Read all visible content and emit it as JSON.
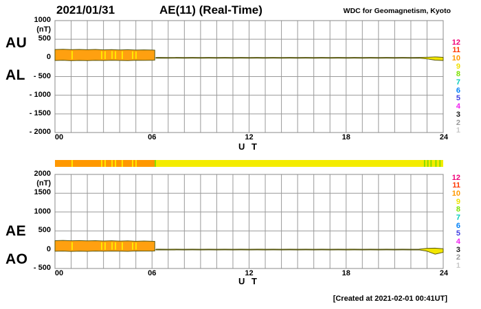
{
  "header": {
    "date": "2021/01/31",
    "title": "AE(11) (Real-Time)",
    "source": "WDC for Geomagnetism, Kyoto"
  },
  "footer": {
    "created": "[Created at 2021-02-01 00:41UT]"
  },
  "colors": {
    "grid": "#999999",
    "border": "#888888",
    "band_orange": "#FFA010",
    "band_yellow": "#F2E600",
    "band_stroke": "#56560e",
    "streak_yellow": "#FFE800",
    "bar_orange": "#FF9800",
    "bar_yellow": "#F4EC00",
    "bar_green": "#8ADC00"
  },
  "legend": {
    "items": [
      {
        "label": "12",
        "color": "#F00078"
      },
      {
        "label": "11",
        "color": "#FF3800"
      },
      {
        "label": "10",
        "color": "#FF9800"
      },
      {
        "label": "9",
        "color": "#F0E000"
      },
      {
        "label": "8",
        "color": "#7CE000"
      },
      {
        "label": "7",
        "color": "#00CCBB"
      },
      {
        "label": "6",
        "color": "#0080F8"
      },
      {
        "label": "5",
        "color": "#4040E0"
      },
      {
        "label": "4",
        "color": "#F020F0"
      },
      {
        "label": "3",
        "color": "#181818"
      },
      {
        "label": "2",
        "color": "#989898"
      },
      {
        "label": "1",
        "color": "#C8C8C8"
      }
    ]
  },
  "activity_bar": {
    "segments": [
      {
        "from": 0,
        "to": 6.17,
        "color_key": "bar_orange"
      },
      {
        "from": 6.17,
        "to": 24,
        "color_key": "bar_yellow"
      }
    ],
    "yellow_streak_hours": [
      1.06,
      2.89,
      3.1,
      3.53,
      3.74,
      4.16,
      4.8,
      5.01
    ],
    "green_streak_hours": [
      6.2,
      22.85,
      23.05,
      23.25,
      23.55,
      23.8
    ]
  },
  "chart_data": [
    {
      "type": "area",
      "panel": "top",
      "title": "AU / AL band",
      "left_labels": [
        "AU",
        "AL"
      ],
      "ylabel": "(nT)",
      "xlabel": "U T",
      "ylim": [
        -2000,
        1000
      ],
      "grid": true,
      "transition_hour": 6.17,
      "yticks": [
        {
          "v": 1000,
          "label": "1000"
        },
        {
          "v": 500,
          "label": "500"
        },
        {
          "v": 0,
          "label": "0"
        },
        {
          "v": -500,
          "label": "- 500"
        },
        {
          "v": -1000,
          "label": "- 1000"
        },
        {
          "v": -1500,
          "label": "- 1500"
        },
        {
          "v": -2000,
          "label": "- 2000"
        }
      ],
      "xticks": [
        {
          "h": 0,
          "label": "00"
        },
        {
          "h": 6,
          "label": "06"
        },
        {
          "h": 12,
          "label": "12"
        },
        {
          "h": 18,
          "label": "18"
        },
        {
          "h": 24,
          "label": "24"
        }
      ],
      "x_hours": [
        0,
        0.5,
        1,
        1.5,
        2,
        2.5,
        3,
        3.5,
        4,
        4.5,
        5,
        5.5,
        6,
        6.17,
        6.25,
        6.5,
        7,
        7.5,
        8,
        8.5,
        9,
        9.5,
        10,
        10.5,
        11,
        11.5,
        12,
        12.5,
        13,
        13.5,
        14,
        14.5,
        15,
        15.5,
        16,
        16.5,
        17,
        17.5,
        18,
        18.5,
        19,
        19.5,
        20,
        20.5,
        21,
        21.5,
        22,
        22.5,
        23,
        23.5,
        24
      ],
      "series": [
        {
          "name": "AU",
          "values": [
            225,
            232,
            222,
            228,
            220,
            226,
            216,
            222,
            214,
            220,
            210,
            216,
            210,
            208,
            12,
            12,
            10,
            12,
            10,
            12,
            10,
            12,
            10,
            12,
            10,
            12,
            10,
            12,
            10,
            12,
            10,
            12,
            10,
            12,
            10,
            12,
            10,
            12,
            10,
            12,
            10,
            12,
            10,
            12,
            10,
            12,
            10,
            12,
            18,
            28,
            15
          ]
        },
        {
          "name": "AL",
          "values": [
            -70,
            -64,
            -74,
            -68,
            -72,
            -66,
            -70,
            -64,
            -68,
            -72,
            -62,
            -66,
            -62,
            -60,
            -8,
            -6,
            -8,
            -6,
            -8,
            -6,
            -8,
            -6,
            -8,
            -6,
            -8,
            -6,
            -8,
            -6,
            -8,
            -6,
            -8,
            -6,
            -8,
            -6,
            -8,
            -6,
            -8,
            -6,
            -8,
            -6,
            -8,
            -6,
            -8,
            -6,
            -8,
            -6,
            -8,
            -6,
            -25,
            -60,
            -70
          ]
        }
      ],
      "streak_hours": [
        1.06,
        2.89,
        3.1,
        3.53,
        3.74,
        4.16,
        4.8,
        5.01
      ]
    },
    {
      "type": "area",
      "panel": "bottom",
      "title": "AE / AO band",
      "left_labels": [
        "AE",
        "AO"
      ],
      "ylabel": "(nT)",
      "xlabel": "U T",
      "ylim": [
        -500,
        2000
      ],
      "grid": true,
      "transition_hour": 6.17,
      "yticks": [
        {
          "v": 2000,
          "label": "2000"
        },
        {
          "v": 1500,
          "label": "1500"
        },
        {
          "v": 1000,
          "label": "1000"
        },
        {
          "v": 500,
          "label": "500"
        },
        {
          "v": 0,
          "label": "0"
        },
        {
          "v": -500,
          "label": "- 500"
        }
      ],
      "xticks": [
        {
          "h": 0,
          "label": "00"
        },
        {
          "h": 6,
          "label": "06"
        },
        {
          "h": 12,
          "label": "12"
        },
        {
          "h": 18,
          "label": "18"
        },
        {
          "h": 24,
          "label": "24"
        }
      ],
      "x_hours": [
        0,
        0.5,
        1,
        1.5,
        2,
        2.5,
        3,
        3.5,
        4,
        4.5,
        5,
        5.5,
        6,
        6.17,
        6.25,
        6.5,
        7,
        7.5,
        8,
        8.5,
        9,
        9.5,
        10,
        10.5,
        11,
        11.5,
        12,
        12.5,
        13,
        13.5,
        14,
        14.5,
        15,
        15.5,
        16,
        16.5,
        17,
        17.5,
        18,
        18.5,
        19,
        19.5,
        20,
        20.5,
        21,
        21.5,
        22,
        22.5,
        23,
        23.5,
        24
      ],
      "series": [
        {
          "name": "AE",
          "values": [
            240,
            246,
            236,
            242,
            234,
            240,
            230,
            236,
            228,
            234,
            224,
            230,
            222,
            220,
            14,
            14,
            12,
            14,
            12,
            14,
            12,
            14,
            12,
            14,
            12,
            14,
            12,
            14,
            12,
            14,
            12,
            14,
            12,
            14,
            12,
            14,
            12,
            14,
            12,
            14,
            12,
            14,
            12,
            14,
            12,
            14,
            12,
            14,
            35,
            40,
            25
          ]
        },
        {
          "name": "AO",
          "values": [
            -42,
            -36,
            -46,
            -40,
            -44,
            -38,
            -42,
            -36,
            -40,
            -44,
            -34,
            -38,
            -36,
            -34,
            -8,
            -6,
            -8,
            -6,
            -8,
            -6,
            -8,
            -6,
            -8,
            -6,
            -8,
            -6,
            -8,
            -6,
            -8,
            -6,
            -8,
            -6,
            -8,
            -6,
            -8,
            -6,
            -8,
            -6,
            -8,
            -6,
            -8,
            -6,
            -8,
            -6,
            -8,
            -6,
            -8,
            -6,
            -40,
            -120,
            -70
          ]
        }
      ],
      "streak_hours": [
        1.06,
        2.89,
        3.1,
        3.53,
        3.74,
        4.16,
        4.8,
        5.01
      ]
    }
  ]
}
